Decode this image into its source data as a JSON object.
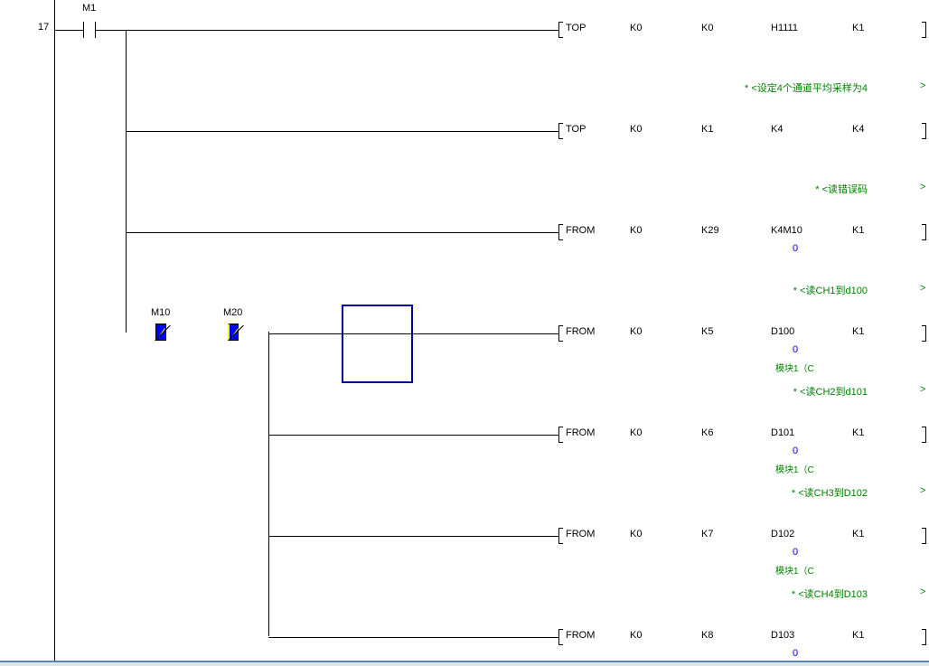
{
  "rung": {
    "number": "17",
    "input_contact": "M1"
  },
  "branch_contacts": [
    {
      "label": "M10",
      "type": "normally-closed",
      "state": "active"
    },
    {
      "label": "M20",
      "type": "normally-closed",
      "state": "active"
    }
  ],
  "instructions": [
    {
      "op": "TOP",
      "params": [
        "K0",
        "K0",
        "H1111",
        "K1"
      ],
      "value": "",
      "note": "",
      "comment": "* <设定4个通道平均采样为4"
    },
    {
      "op": "TOP",
      "params": [
        "K0",
        "K1",
        "K4",
        "K4"
      ],
      "value": "",
      "note": "",
      "comment": "* <读错误码"
    },
    {
      "op": "FROM",
      "params": [
        "K0",
        "K29",
        "K4M10",
        "K1"
      ],
      "value": "0",
      "note": "",
      "comment": "* <读CH1到d100"
    },
    {
      "op": "FROM",
      "params": [
        "K0",
        "K5",
        "D100",
        "K1"
      ],
      "value": "0",
      "note": "模块1（C",
      "comment": "* <读CH2到d101"
    },
    {
      "op": "FROM",
      "params": [
        "K0",
        "K6",
        "D101",
        "K1"
      ],
      "value": "0",
      "note": "模块1（C",
      "comment": "* <读CH3到D102"
    },
    {
      "op": "FROM",
      "params": [
        "K0",
        "K7",
        "D102",
        "K1"
      ],
      "value": "0",
      "note": "模块1（C",
      "comment": "* <读CH4到D103"
    },
    {
      "op": "FROM",
      "params": [
        "K0",
        "K8",
        "D103",
        "K1"
      ],
      "value": "0",
      "note": "",
      "comment": ""
    }
  ],
  "comment_end": ">",
  "colors": {
    "comment": "#008000",
    "value": "#0000ff",
    "contact_active": "#0000ff",
    "cursor": "#0000a0"
  }
}
